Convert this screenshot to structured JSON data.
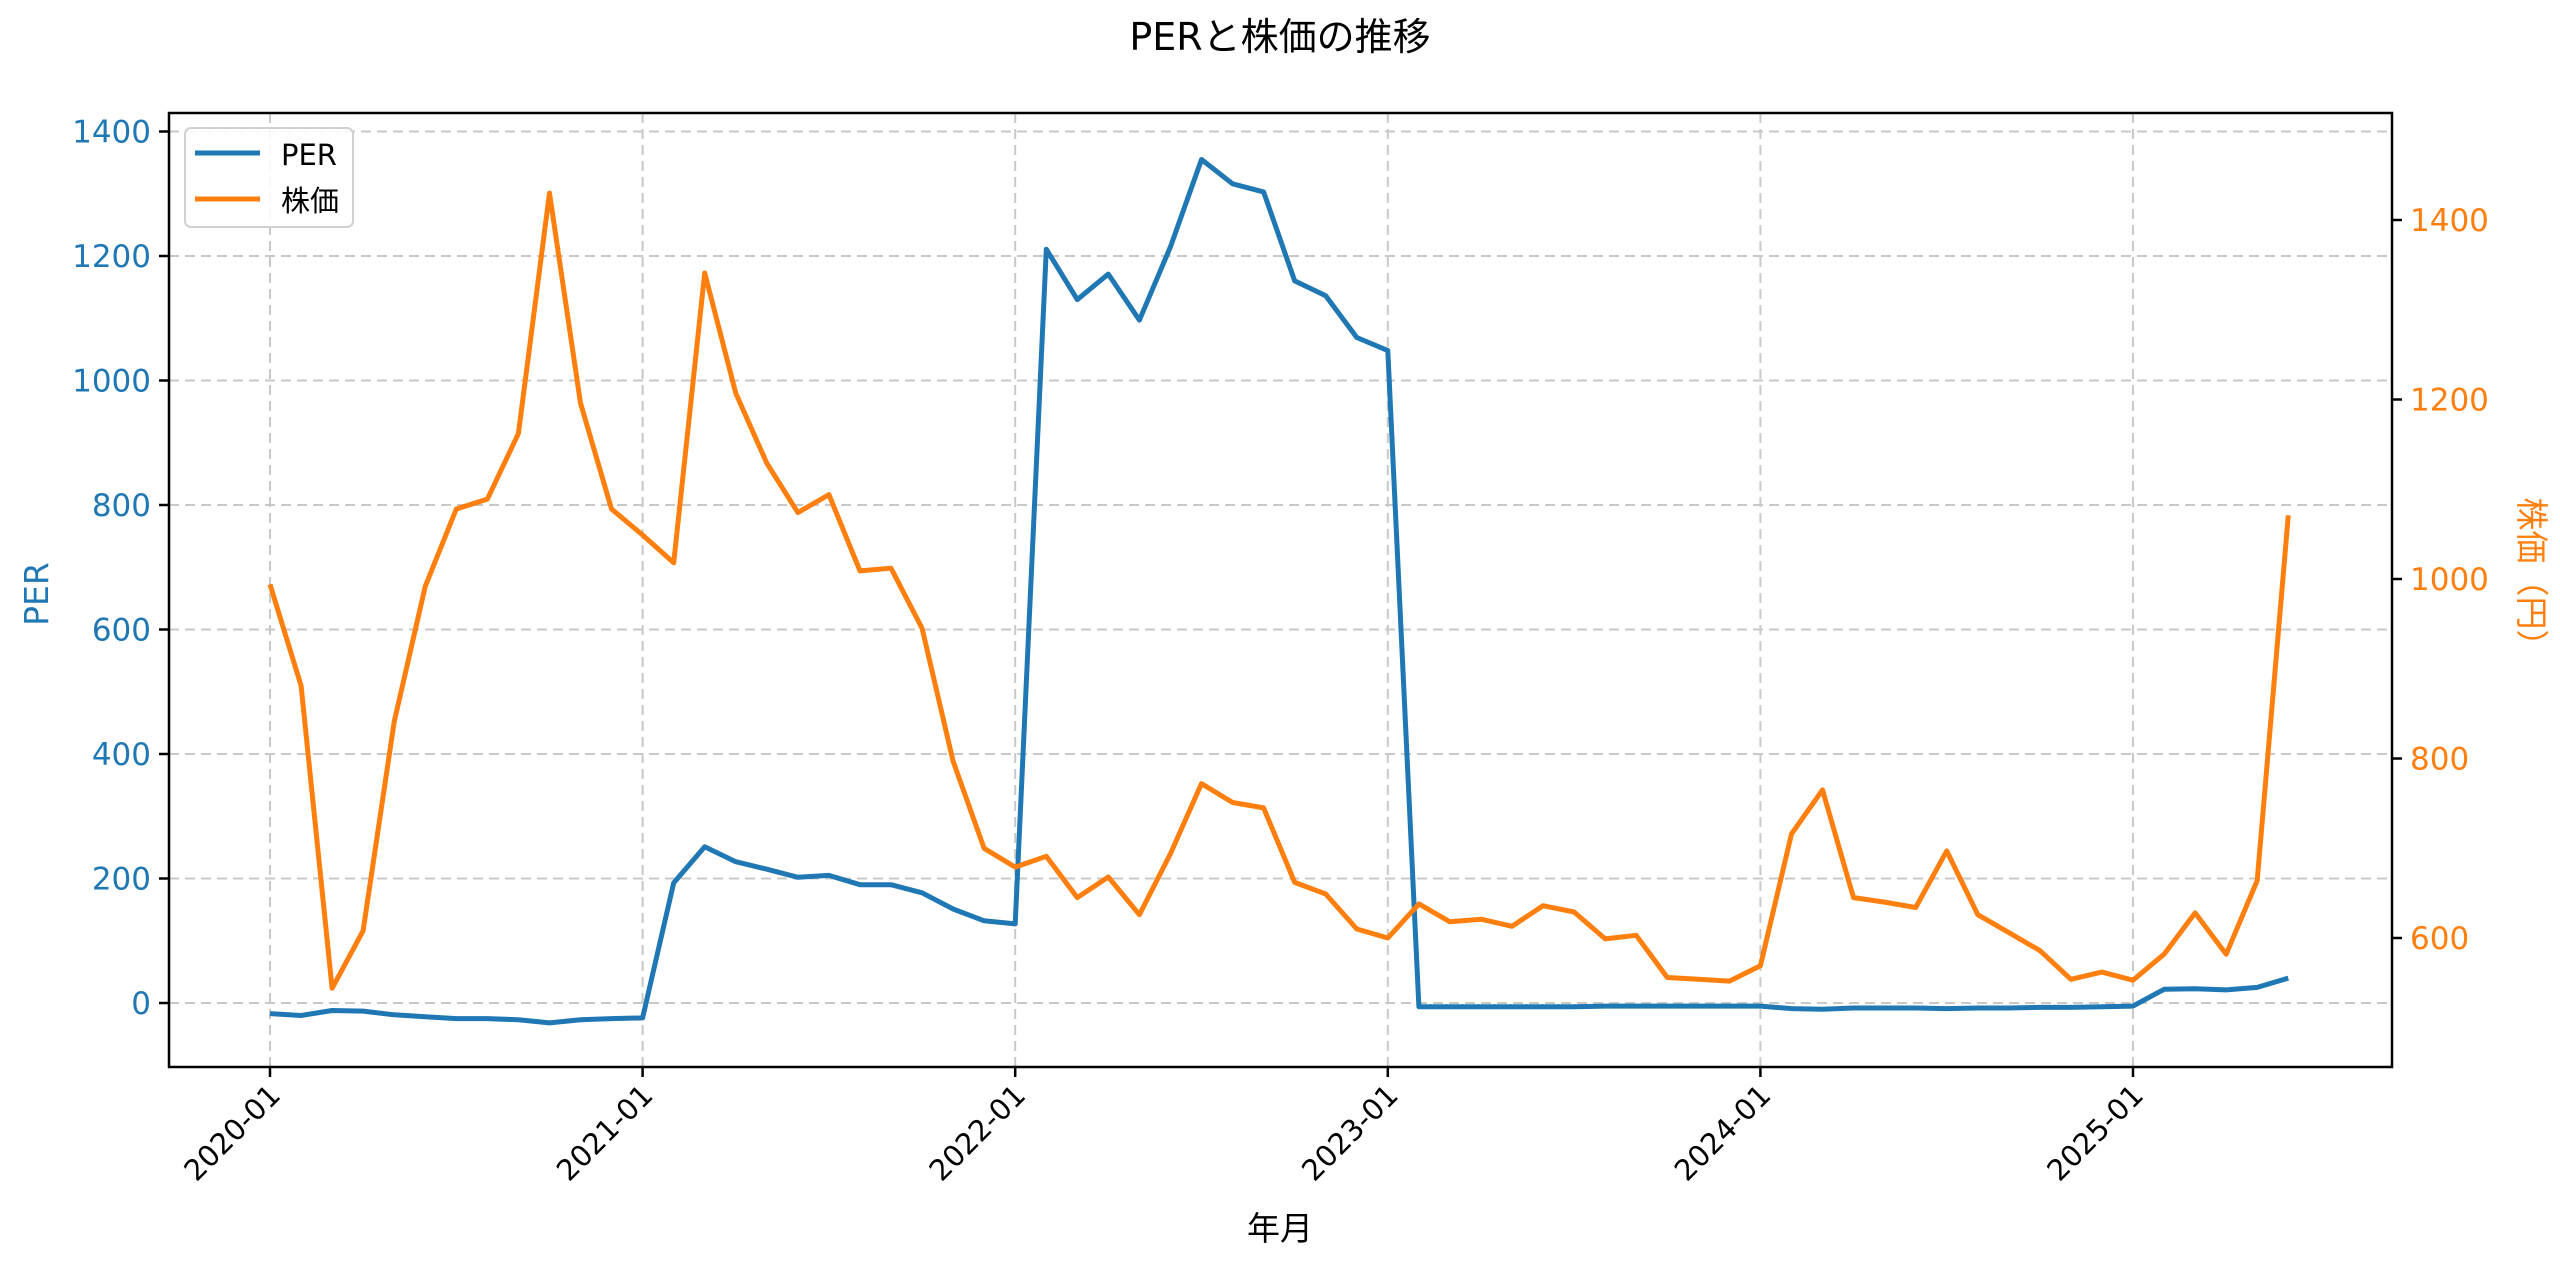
{
  "title": "PERと株価の推移",
  "colors": {
    "per": "#1f77b4",
    "price": "#ff7f0e",
    "grid": "#c8c8c8",
    "axis": "#000000"
  },
  "legend": {
    "items": [
      {
        "label": "PER",
        "color": "#1f77b4"
      },
      {
        "label": "株価",
        "color": "#ff7f0e"
      }
    ],
    "position": "upper left"
  },
  "chart_data": {
    "type": "line",
    "title": "PERと株価の推移",
    "xlabel": "年月",
    "ylabel_left": "PER",
    "ylabel_right": "株価（円）",
    "x_tick_labels": [
      "2020-01",
      "2021-01",
      "2022-01",
      "2023-01",
      "2024-01",
      "2025-01"
    ],
    "y_left_ticks": [
      0,
      200,
      400,
      600,
      800,
      1000,
      1200,
      1400
    ],
    "y_right_ticks": [
      600,
      800,
      1000,
      1200,
      1400
    ],
    "ylim_left": [
      -100,
      1430
    ],
    "ylim_right": [
      455,
      1515
    ],
    "grid": true,
    "legend_position": "upper left",
    "x": [
      "2020-01",
      "2020-02",
      "2020-03",
      "2020-04",
      "2020-05",
      "2020-06",
      "2020-07",
      "2020-08",
      "2020-09",
      "2020-10",
      "2020-11",
      "2020-12",
      "2021-01",
      "2021-02",
      "2021-03",
      "2021-04",
      "2021-05",
      "2021-06",
      "2021-07",
      "2021-08",
      "2021-09",
      "2021-10",
      "2021-11",
      "2021-12",
      "2022-01",
      "2022-02",
      "2022-03",
      "2022-04",
      "2022-05",
      "2022-06",
      "2022-07",
      "2022-08",
      "2022-09",
      "2022-10",
      "2022-11",
      "2022-12",
      "2023-01",
      "2023-02",
      "2023-03",
      "2023-04",
      "2023-05",
      "2023-06",
      "2023-07",
      "2023-08",
      "2023-09",
      "2023-10",
      "2023-11",
      "2023-12",
      "2024-01",
      "2024-02",
      "2024-03",
      "2024-04",
      "2024-05",
      "2024-06",
      "2024-07",
      "2024-08",
      "2024-09",
      "2024-10",
      "2024-11",
      "2024-12",
      "2025-01",
      "2025-02",
      "2025-03",
      "2025-04",
      "2025-05",
      "2025-06"
    ],
    "series": [
      {
        "name": "PER",
        "axis": "left",
        "color": "#1f77b4",
        "values": [
          -17,
          -20,
          -12,
          -13,
          -19,
          -22,
          -25,
          -25,
          -27,
          -32,
          -27,
          -25,
          -24,
          193,
          251,
          227,
          215,
          202,
          205,
          190,
          190,
          177,
          151,
          132,
          127,
          1211,
          1130,
          1171,
          1097,
          1215,
          1355,
          1316,
          1303,
          1160,
          1136,
          1069,
          1048,
          -6,
          -6,
          -6,
          -6,
          -6,
          -6,
          -5,
          -5,
          -5,
          -5,
          -5,
          -5,
          -9,
          -10,
          -8,
          -8,
          -8,
          -9,
          -8,
          -8,
          -7,
          -7,
          -6,
          -5,
          22,
          23,
          21,
          25,
          40
        ]
      },
      {
        "name": "株価",
        "axis": "right",
        "color": "#ff7f0e",
        "values": [
          994,
          881,
          544,
          608,
          841,
          992,
          1078,
          1089,
          1162,
          1430,
          1196,
          1078,
          1049,
          1018,
          1341,
          1207,
          1129,
          1074,
          1094,
          1009,
          1012,
          945,
          797,
          700,
          679,
          691,
          645,
          668,
          626,
          694,
          772,
          751,
          745,
          662,
          649,
          610,
          600,
          638,
          618,
          621,
          613,
          636,
          629,
          599,
          603,
          556,
          554,
          552,
          569,
          716,
          765,
          645,
          640,
          634,
          697,
          626,
          606,
          586,
          554,
          562,
          553,
          582,
          628,
          582,
          664,
          1071
        ]
      }
    ]
  }
}
